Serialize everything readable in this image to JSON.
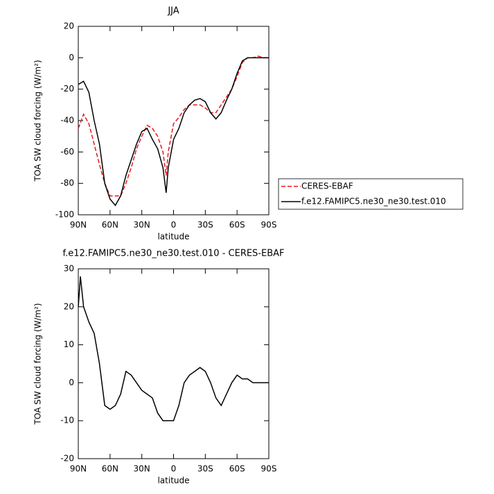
{
  "chart_data": [
    {
      "type": "line",
      "title": "JJA",
      "xlabel": "latitude",
      "ylabel": "TOA SW cloud forcing (W/m²)",
      "x": [
        90,
        85,
        80,
        75,
        70,
        65,
        60,
        55,
        50,
        45,
        40,
        35,
        30,
        25,
        20,
        15,
        10,
        7,
        5,
        0,
        -5,
        -10,
        -15,
        -20,
        -25,
        -30,
        -35,
        -40,
        -45,
        -50,
        -55,
        -60,
        -65,
        -70,
        -75,
        -80,
        -85,
        -90
      ],
      "series": [
        {
          "name": "CERES-EBAF",
          "color": "#e8161b",
          "linestyle": "dashed",
          "values": [
            -45,
            -36,
            -42,
            -55,
            -68,
            -80,
            -88,
            -88,
            -88,
            -80,
            -70,
            -58,
            -50,
            -43,
            -45,
            -50,
            -60,
            -75,
            -60,
            -42,
            -38,
            -33,
            -30,
            -30,
            -30,
            -32,
            -35,
            -35,
            -30,
            -25,
            -20,
            -12,
            -3,
            0,
            0,
            1,
            0,
            0
          ]
        },
        {
          "name": "f.e12.FAMIPC5.ne30_ne30.test.010",
          "color": "#000000",
          "linestyle": "solid",
          "values": [
            -17,
            -15,
            -22,
            -40,
            -55,
            -80,
            -90,
            -94,
            -88,
            -75,
            -65,
            -55,
            -47,
            -45,
            -52,
            -58,
            -70,
            -86,
            -70,
            -52,
            -45,
            -35,
            -30,
            -27,
            -26,
            -28,
            -35,
            -39,
            -35,
            -27,
            -20,
            -10,
            -2,
            0,
            0,
            0,
            0,
            0
          ]
        }
      ],
      "xlim": [
        90,
        -90
      ],
      "xticks": [
        {
          "value": 90,
          "label": "90N"
        },
        {
          "value": 60,
          "label": "60N"
        },
        {
          "value": 30,
          "label": "30N"
        },
        0,
        {
          "value": -30,
          "label": "30S"
        },
        {
          "value": -60,
          "label": "60S"
        },
        {
          "value": -90,
          "label": "90S"
        }
      ],
      "ylim": [
        -100,
        20
      ],
      "yticks": [
        -100,
        -80,
        -60,
        -40,
        -20,
        0,
        20
      ],
      "legend": "right"
    },
    {
      "type": "line",
      "title": "f.e12.FAMIPC5.ne30_ne30.test.010 - CERES-EBAF",
      "xlabel": "latitude",
      "ylabel": "TOA SW cloud forcing (W/m²)",
      "x": [
        90,
        88,
        85,
        80,
        75,
        70,
        65,
        60,
        55,
        50,
        45,
        40,
        35,
        30,
        25,
        20,
        15,
        10,
        5,
        0,
        -5,
        -10,
        -15,
        -20,
        -25,
        -30,
        -35,
        -40,
        -45,
        -50,
        -55,
        -60,
        -65,
        -70,
        -75,
        -80,
        -85,
        -90
      ],
      "series": [
        {
          "color": "#000000",
          "linestyle": "solid",
          "values": [
            20,
            28,
            20,
            16,
            13,
            5,
            -6,
            -7,
            -6,
            -3,
            3,
            2,
            0,
            -2,
            -3,
            -4,
            -8,
            -10,
            -10,
            -10,
            -6,
            0,
            2,
            3,
            4,
            3,
            0,
            -4,
            -6,
            -3,
            0,
            2,
            1,
            1,
            0,
            0,
            0,
            0
          ]
        }
      ],
      "xlim": [
        90,
        -90
      ],
      "xticks": [
        {
          "value": 90,
          "label": "90N"
        },
        {
          "value": 60,
          "label": "60N"
        },
        {
          "value": 30,
          "label": "30N"
        },
        0,
        {
          "value": -30,
          "label": "30S"
        },
        {
          "value": -60,
          "label": "60S"
        },
        {
          "value": -90,
          "label": "90S"
        }
      ],
      "ylim": [
        -20,
        30
      ],
      "yticks": [
        -20,
        -10,
        0,
        10,
        20,
        30
      ]
    }
  ]
}
